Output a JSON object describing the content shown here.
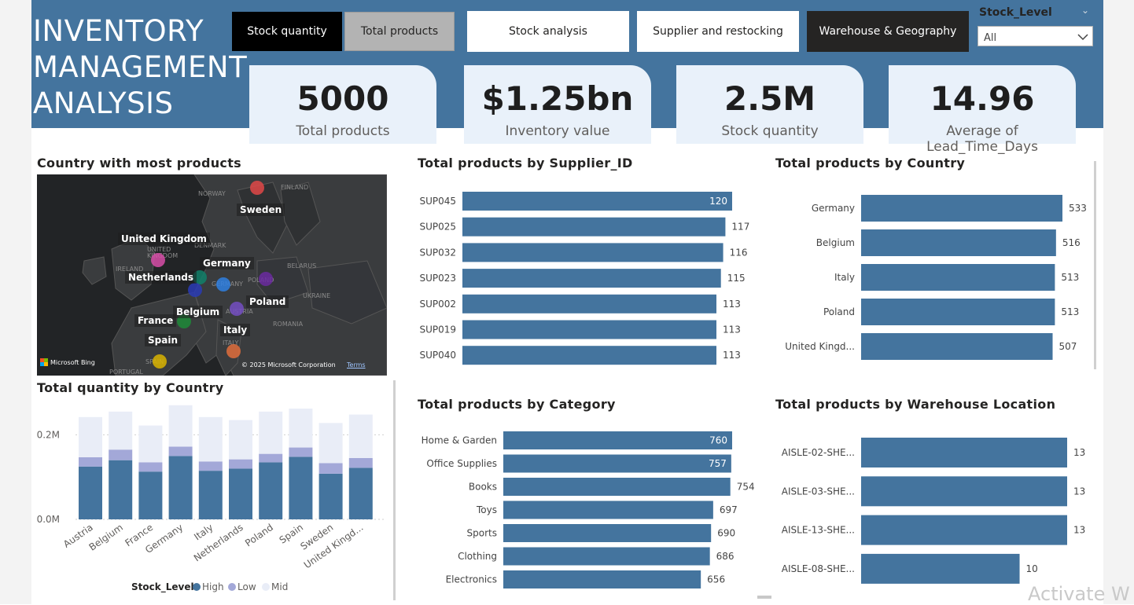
{
  "header": {
    "title_lines": [
      "INVENTORY",
      "MANAGEMENT",
      "ANALYSIS"
    ],
    "nav": [
      {
        "label": "Stock quantity",
        "bg": "#000000",
        "fg": "#ffffff"
      },
      {
        "label": "Total products",
        "bg": "#b3b3b3",
        "fg": "#252423"
      },
      {
        "label": "Stock analysis",
        "bg": "#ffffff",
        "fg": "#252423"
      },
      {
        "label": "Supplier and restocking",
        "bg": "#ffffff",
        "fg": "#252423"
      },
      {
        "label": "Warehouse & Geography",
        "bg": "#252423",
        "fg": "#ffffff"
      }
    ],
    "slicer": {
      "title": "Stock_Level",
      "value": "All"
    }
  },
  "kpis": [
    {
      "value": "5000",
      "label": "Total products"
    },
    {
      "value": "$1.25bn",
      "label": "Inventory value"
    },
    {
      "value": "2.5M",
      "label": "Stock quantity"
    },
    {
      "value": "14.96",
      "label": "Average of Lead_Time_Days"
    }
  ],
  "map": {
    "title": "Country with most products",
    "labels": [
      "Sweden",
      "United Kingdom",
      "Germany",
      "Netherlands",
      "Poland",
      "Belgium",
      "France",
      "Italy",
      "Spain"
    ],
    "background_labels": [
      "NORWAY",
      "FINLAND",
      "DENMARK",
      "IRELAND",
      "BELARUS",
      "UKRAINE",
      "ROMANIA",
      "UNITED KINGDOM",
      "GERMANY",
      "POLAND",
      "AUSTRIA",
      "ITALY",
      "SPAIN",
      "PORTUGAL"
    ],
    "attribution_left": "Microsoft Bing",
    "attribution_right": "© 2025 Microsoft Corporation",
    "terms": "Terms"
  },
  "colors": {
    "banner": "#44749e",
    "bar": "#44749e",
    "high": "#44749e",
    "low": "#a3a8d8",
    "mid": "#e9edf7",
    "kpi_bg": "#e9f1fa"
  },
  "chart_data": [
    {
      "type": "bar",
      "title": "Total products by Supplier_ID",
      "categories": [
        "SUP045",
        "SUP025",
        "SUP032",
        "SUP023",
        "SUP002",
        "SUP019",
        "SUP040"
      ],
      "values": [
        120,
        117,
        116,
        115,
        113,
        113,
        113
      ],
      "orientation": "horizontal"
    },
    {
      "type": "bar",
      "title": "Total products by Country",
      "categories": [
        "Germany",
        "Belgium",
        "Italy",
        "Poland",
        "United Kingd..."
      ],
      "values": [
        533,
        516,
        513,
        513,
        507
      ],
      "orientation": "horizontal"
    },
    {
      "type": "bar",
      "title": "Total products by Category",
      "categories": [
        "Home & Garden",
        "Office Supplies",
        "Books",
        "Toys",
        "Sports",
        "Clothing",
        "Electronics"
      ],
      "values": [
        760,
        757,
        754,
        697,
        690,
        686,
        656
      ],
      "orientation": "horizontal"
    },
    {
      "type": "bar",
      "title": "Total products by Warehouse Location",
      "categories": [
        "AISLE-02-SHE...",
        "AISLE-03-SHE...",
        "AISLE-13-SHE...",
        "AISLE-08-SHE..."
      ],
      "values": [
        13,
        13,
        13,
        10
      ],
      "orientation": "horizontal"
    },
    {
      "type": "bar",
      "stacked": true,
      "title": "Total quantity by Country",
      "categories": [
        "Austria",
        "Belgium",
        "France",
        "Germany",
        "Italy",
        "Netherlands",
        "Poland",
        "Spain",
        "Sweden",
        "United Kingd..."
      ],
      "series": [
        {
          "name": "High",
          "values": [
            125000,
            140000,
            113000,
            150000,
            115000,
            120000,
            135000,
            148000,
            108000,
            122000
          ]
        },
        {
          "name": "Low",
          "values": [
            22000,
            25000,
            22000,
            22000,
            22000,
            22000,
            20000,
            22000,
            25000,
            23000
          ]
        },
        {
          "name": "Mid",
          "values": [
            95000,
            90000,
            87000,
            98000,
            105000,
            93000,
            100000,
            92000,
            95000,
            103000
          ]
        }
      ],
      "yticks": [
        "0.0M",
        "0.2M"
      ],
      "ylim": [
        0,
        290000
      ],
      "legend_title": "Stock_Level",
      "legend": [
        "High",
        "Low",
        "Mid"
      ],
      "legend_position": "bottom"
    }
  ],
  "watermark": "Activate W"
}
